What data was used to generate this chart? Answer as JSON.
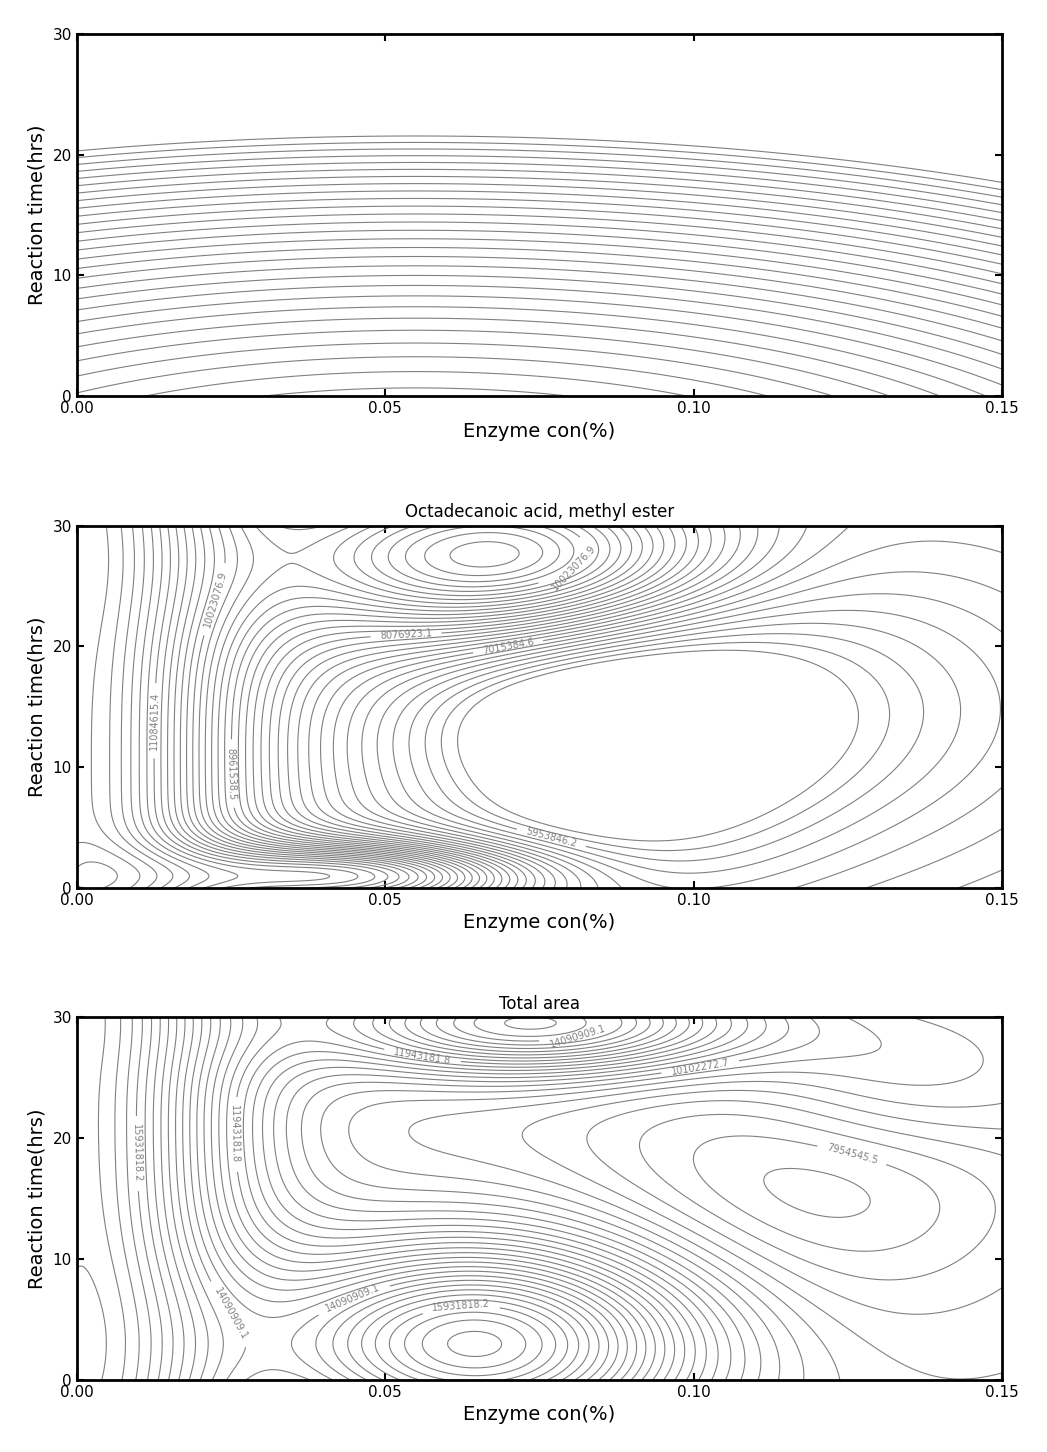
{
  "x_range": [
    0.0,
    0.15
  ],
  "y_range": [
    0,
    30
  ],
  "xlabel": "Enzyme con(%)",
  "ylabel": "Reaction time(hrs)",
  "plot1_title": "",
  "plot2_title": "Octadecanoic acid, methyl ester",
  "plot3_title": "Total area",
  "x_ticks": [
    0.0,
    0.05,
    0.1,
    0.15
  ],
  "y_ticks": [
    0,
    10,
    20,
    30
  ],
  "figsize": [
    10.47,
    14.52
  ],
  "dpi": 100
}
